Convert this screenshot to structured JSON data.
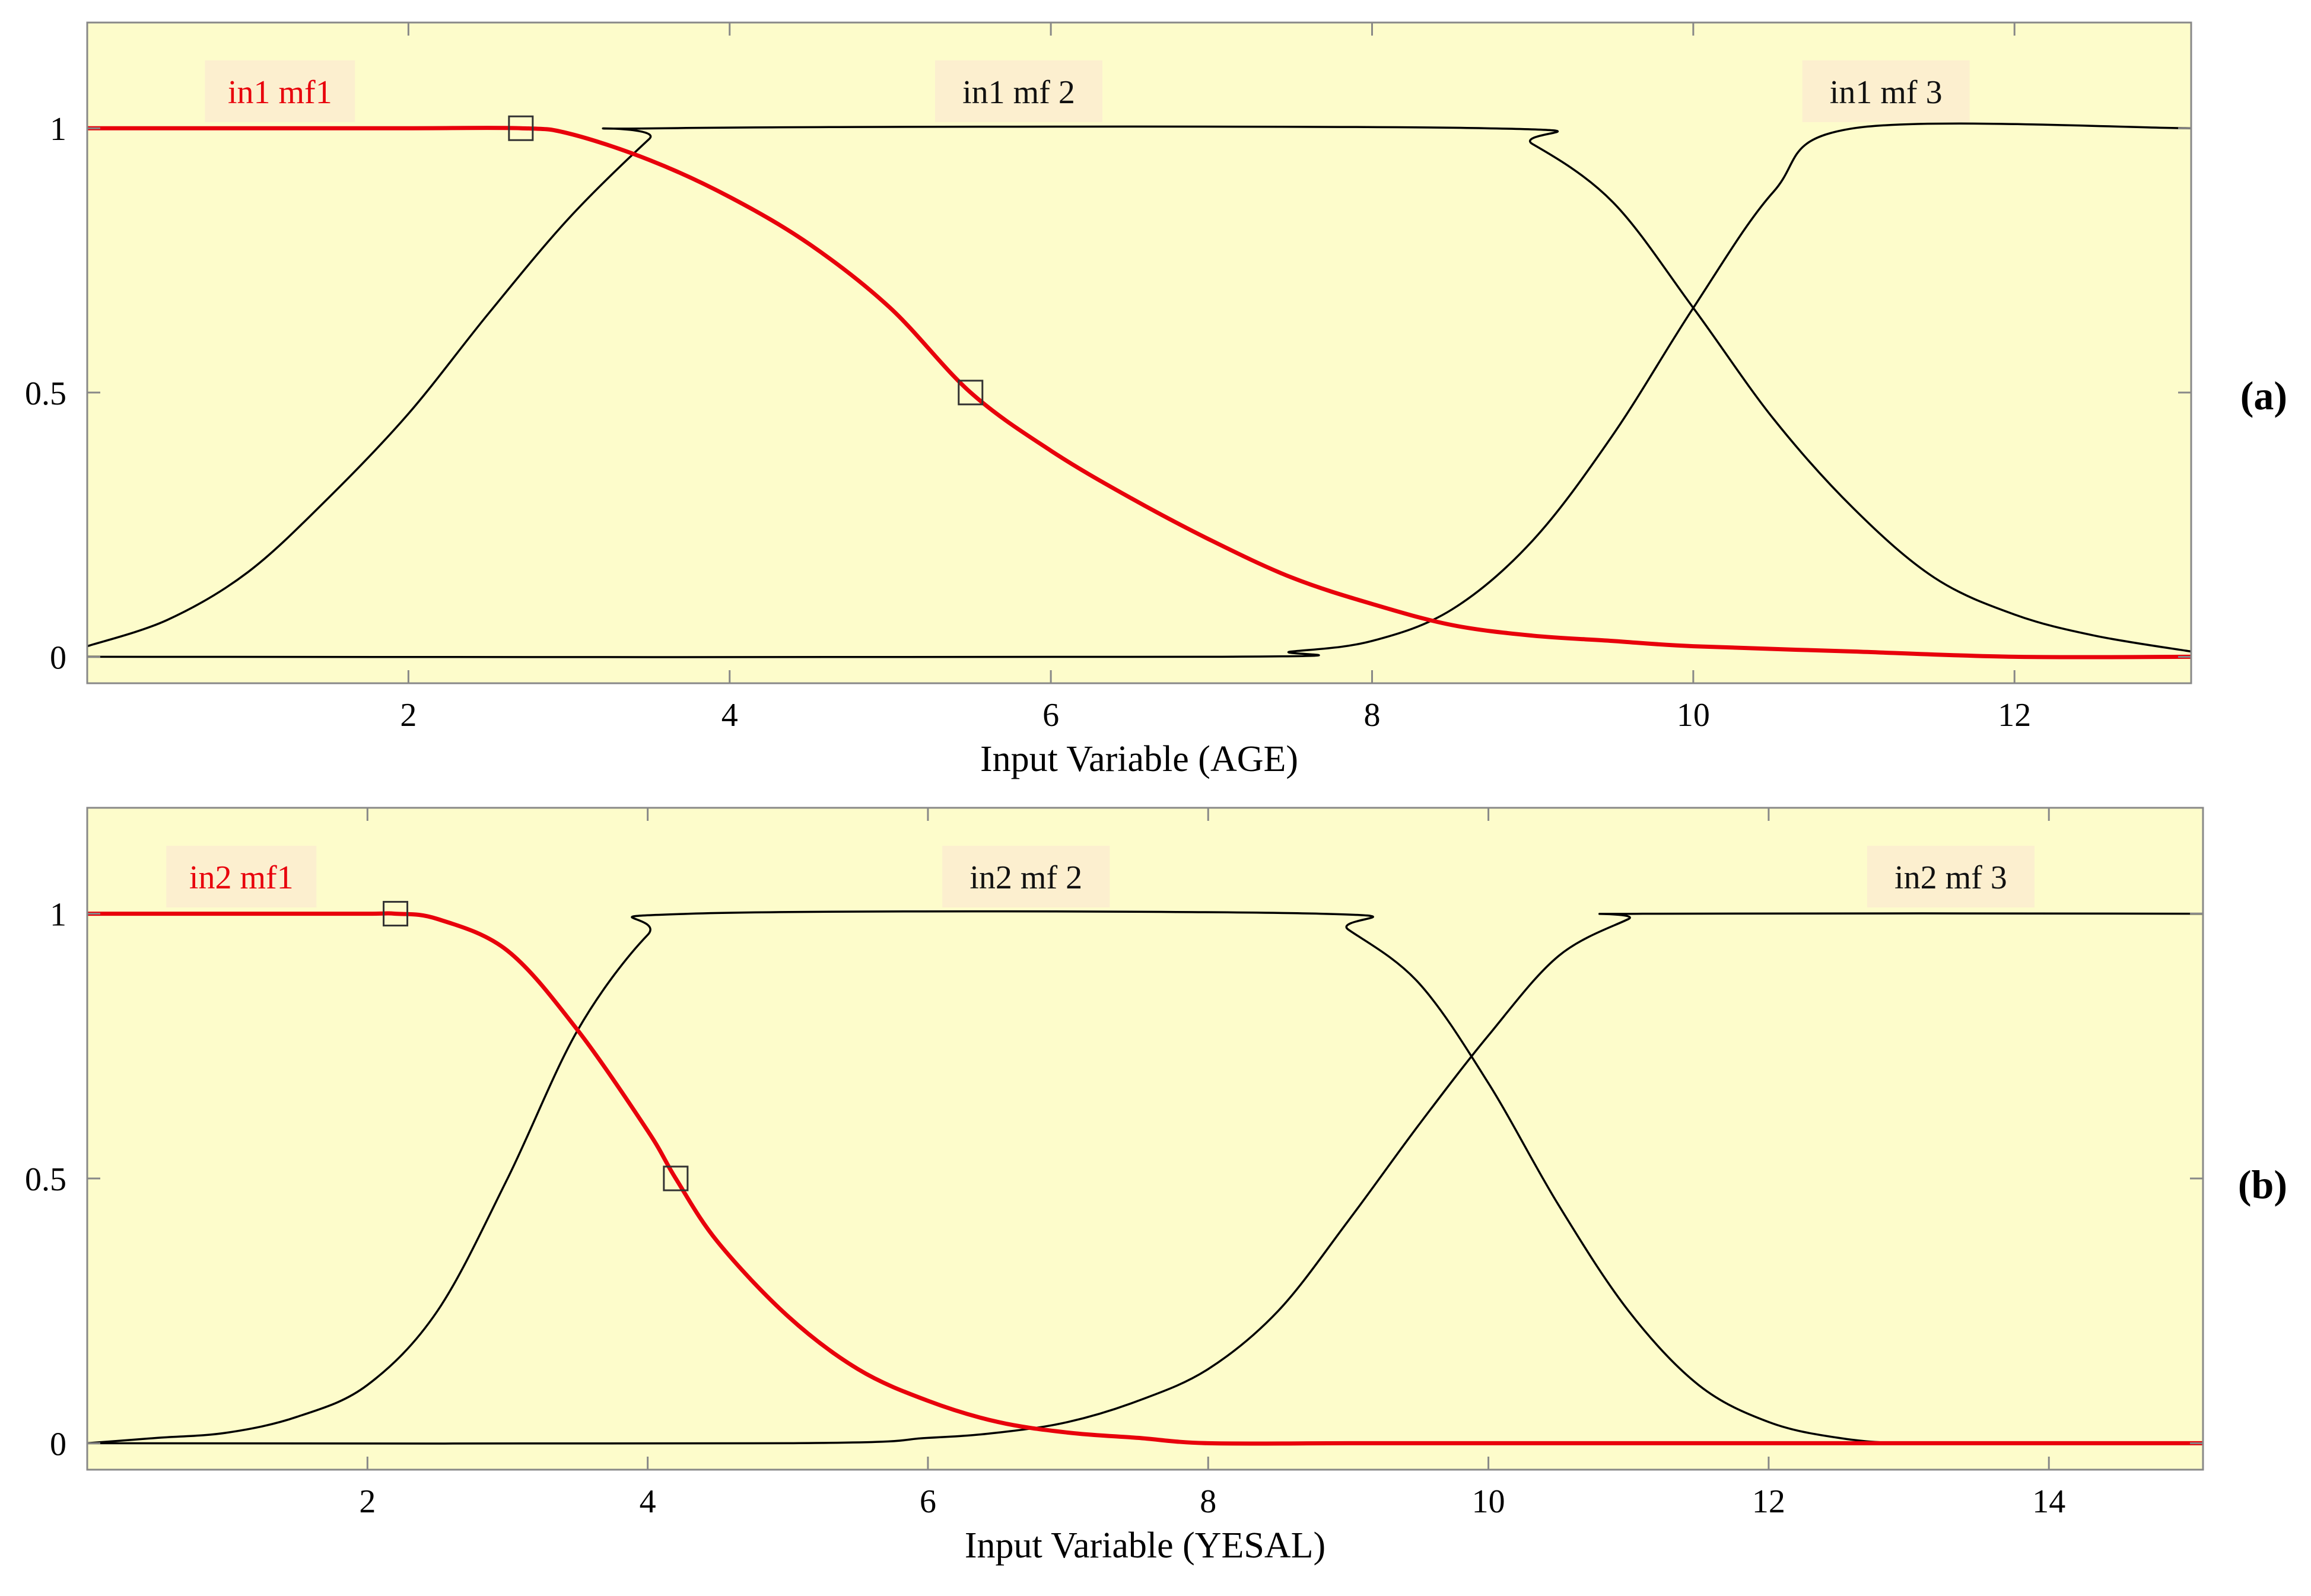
{
  "figure": {
    "panel_labels": [
      "(a)",
      "(b)"
    ]
  },
  "colors": {
    "plot_background": "#fdfccb",
    "label_background": "#fcefcf",
    "highlight": "#e8000b",
    "curve": "#000000"
  },
  "chart_data": [
    {
      "type": "line",
      "panel": "(a)",
      "xlabel": "Input Variable (AGE)",
      "ylabel": "",
      "xlim": [
        0,
        13.1
      ],
      "ylim": [
        -0.05,
        1.2
      ],
      "xticks": [
        2,
        4,
        6,
        8,
        10,
        12
      ],
      "yticks": [
        0,
        0.5,
        1
      ],
      "ytick_labels": [
        "0",
        "0.5",
        "1"
      ],
      "grid": false,
      "series": [
        {
          "name": "in1 mf1",
          "highlighted": true,
          "label_at": [
            1.2,
            1.07
          ],
          "handles": [
            [
              2.7,
              1.0
            ],
            [
              5.5,
              0.5
            ]
          ],
          "x": [
            0,
            1,
            2,
            2.7,
            3,
            3.5,
            4,
            4.5,
            5,
            5.5,
            6,
            6.5,
            7,
            7.5,
            8,
            8.5,
            9,
            9.5,
            10,
            11,
            12,
            13.1
          ],
          "y": [
            1.0,
            1.0,
            1.0,
            1.0,
            0.99,
            0.94,
            0.87,
            0.78,
            0.66,
            0.5,
            0.39,
            0.3,
            0.22,
            0.15,
            0.1,
            0.06,
            0.04,
            0.03,
            0.02,
            0.01,
            0.0,
            0.0
          ]
        },
        {
          "name": "in1 mf 2",
          "highlighted": false,
          "label_at": [
            5.8,
            1.07
          ],
          "x": [
            0,
            0.5,
            1,
            1.5,
            2,
            2.5,
            3,
            3.5,
            3.6,
            8.7,
            9,
            9.5,
            10,
            10.5,
            11,
            11.5,
            12,
            12.5,
            13.1
          ],
          "y": [
            0.02,
            0.07,
            0.16,
            0.3,
            0.46,
            0.65,
            0.83,
            0.98,
            1.0,
            1.0,
            0.97,
            0.86,
            0.66,
            0.45,
            0.28,
            0.15,
            0.08,
            0.04,
            0.01
          ]
        },
        {
          "name": "in1 mf 3",
          "highlighted": false,
          "label_at": [
            11.2,
            1.07
          ],
          "x": [
            0,
            7,
            7.5,
            8,
            8.5,
            9,
            9.5,
            10,
            10.5,
            11,
            13.1
          ],
          "y": [
            0.0,
            0.0,
            0.01,
            0.03,
            0.09,
            0.22,
            0.42,
            0.66,
            0.88,
            1.0,
            1.0
          ]
        }
      ]
    },
    {
      "type": "line",
      "panel": "(b)",
      "xlabel": "Input Variable (YESAL)",
      "ylabel": "",
      "xlim": [
        0,
        15.1
      ],
      "ylim": [
        -0.05,
        1.2
      ],
      "xticks": [
        2,
        4,
        6,
        8,
        10,
        12,
        14
      ],
      "yticks": [
        0,
        0.5,
        1
      ],
      "ytick_labels": [
        "0",
        "0.5",
        "1"
      ],
      "grid": false,
      "series": [
        {
          "name": "in2 mf1",
          "highlighted": true,
          "label_at": [
            1.1,
            1.07
          ],
          "handles": [
            [
              2.2,
              1.0
            ],
            [
              4.2,
              0.5
            ]
          ],
          "x": [
            0,
            1,
            2,
            2.2,
            2.5,
            3,
            3.5,
            4,
            4.2,
            4.5,
            5,
            5.5,
            6,
            6.5,
            7,
            7.5,
            8,
            9,
            10,
            12,
            15.1
          ],
          "y": [
            1.0,
            1.0,
            1.0,
            1.0,
            0.99,
            0.93,
            0.78,
            0.59,
            0.5,
            0.38,
            0.24,
            0.14,
            0.08,
            0.04,
            0.02,
            0.01,
            0.0,
            0.0,
            0.0,
            0.0,
            0.0
          ]
        },
        {
          "name": "in2 mf 2",
          "highlighted": false,
          "label_at": [
            6.7,
            1.07
          ],
          "x": [
            0,
            0.5,
            1,
            1.5,
            2,
            2.5,
            3,
            3.5,
            4,
            4.3,
            8.8,
            9,
            9.5,
            10,
            10.5,
            11,
            11.5,
            12,
            12.5,
            13,
            14,
            15.1
          ],
          "y": [
            0.0,
            0.01,
            0.02,
            0.05,
            0.11,
            0.25,
            0.5,
            0.78,
            0.96,
            1.0,
            1.0,
            0.97,
            0.87,
            0.68,
            0.45,
            0.25,
            0.11,
            0.04,
            0.01,
            0.0,
            0.0,
            0.0
          ]
        },
        {
          "name": "in2 mf 3",
          "highlighted": false,
          "label_at": [
            13.3,
            1.07
          ],
          "x": [
            0,
            5,
            6,
            6.5,
            7,
            7.5,
            8,
            8.5,
            9,
            9.5,
            10,
            10.5,
            11,
            11.1,
            15.1
          ],
          "y": [
            0.0,
            0.0,
            0.01,
            0.02,
            0.04,
            0.08,
            0.14,
            0.25,
            0.42,
            0.6,
            0.77,
            0.92,
            0.99,
            1.0,
            1.0
          ]
        }
      ]
    }
  ]
}
